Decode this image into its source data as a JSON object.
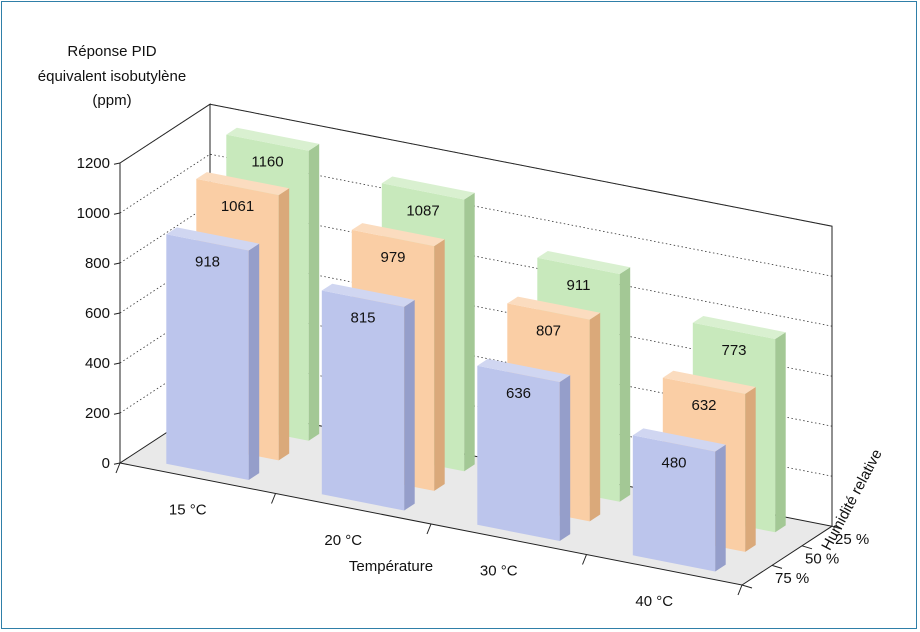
{
  "chart_data": {
    "type": "bar",
    "title": "",
    "ylabel_lines": [
      "Réponse PID",
      "équivalent isobutylène",
      "(ppm)"
    ],
    "xlabel": "Température",
    "zlabel": "Humidité relative",
    "categories": [
      "15 °C",
      "20 °C",
      "30 °C",
      "40 °C"
    ],
    "depth_categories": [
      "25 %",
      "50 %",
      "75 %"
    ],
    "ylim": [
      0,
      1200
    ],
    "yticks": [
      0,
      200,
      400,
      600,
      800,
      1000,
      1200
    ],
    "grid": true,
    "series": [
      {
        "name": "25 %",
        "color": "#b9e3a9",
        "values": [
          1160,
          1087,
          911,
          773
        ]
      },
      {
        "name": "50 %",
        "color": "#f8c08b",
        "values": [
          1061,
          979,
          807,
          632
        ]
      },
      {
        "name": "75 %",
        "color": "#a9b4e6",
        "values": [
          918,
          815,
          636,
          480
        ]
      }
    ],
    "frame_color": "#2f7fa8"
  }
}
